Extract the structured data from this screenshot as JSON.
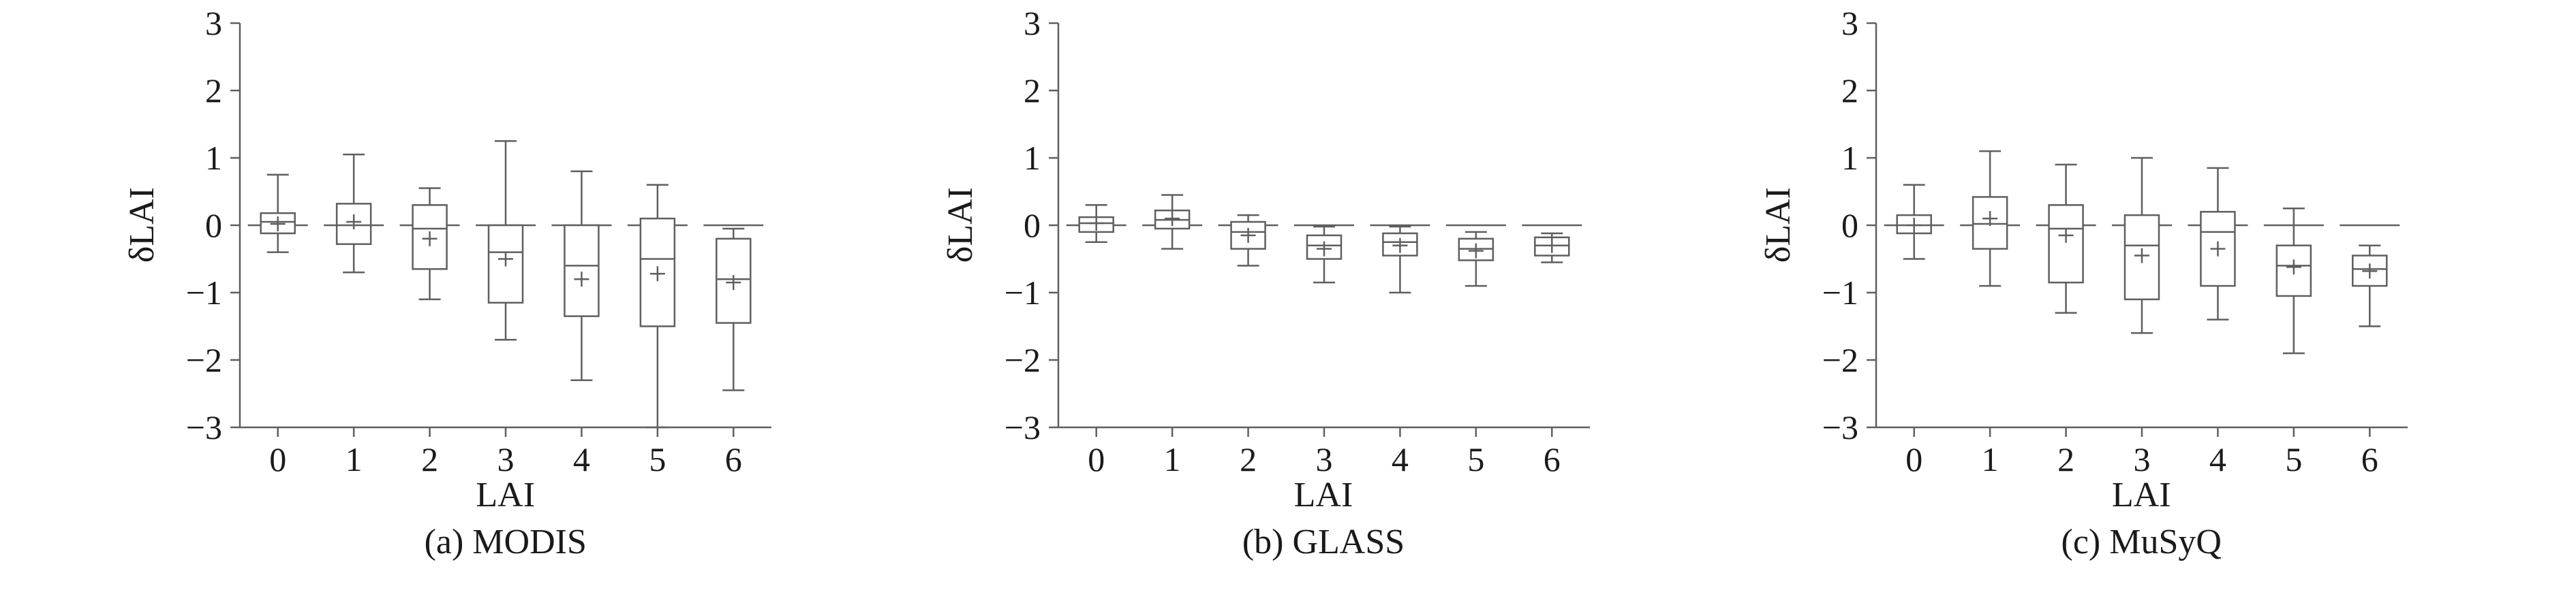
{
  "figure": {
    "description": "Three box-and-whisker subplots of LAI bias (δLAI) versus LAI class for three products",
    "line_color": "#5f5f5f",
    "text_color": "#1a1a1a",
    "background": "#ffffff"
  },
  "chart_data": [
    {
      "type": "box",
      "title": "(a) MODIS",
      "xlabel": "LAI",
      "ylabel": "δLAI",
      "categories": [
        "0",
        "1",
        "2",
        "3",
        "4",
        "5",
        "6"
      ],
      "ylim": [
        -3,
        3
      ],
      "yticks": [
        -3,
        -2,
        -1,
        0,
        1,
        2,
        3
      ],
      "ytick_labels": [
        "−3",
        "−2",
        "−1",
        "0",
        "1",
        "2",
        "3"
      ],
      "zero_line": true,
      "legend": "none",
      "grid": false,
      "line_color": "#5f5f5f",
      "text_color": "#1a1a1a",
      "boxes": [
        {
          "low": -0.4,
          "q1": -0.12,
          "median": 0.05,
          "q3": 0.18,
          "high": 0.75,
          "mean": 0.02
        },
        {
          "low": -0.7,
          "q1": -0.28,
          "median": 0.0,
          "q3": 0.32,
          "high": 1.05,
          "mean": 0.05
        },
        {
          "low": -1.1,
          "q1": -0.65,
          "median": -0.05,
          "q3": 0.3,
          "high": 0.55,
          "mean": -0.2
        },
        {
          "low": -1.7,
          "q1": -1.15,
          "median": -0.4,
          "q3": 0.0,
          "high": 1.25,
          "mean": -0.5
        },
        {
          "low": -2.3,
          "q1": -1.35,
          "median": -0.6,
          "q3": 0.0,
          "high": 0.8,
          "mean": -0.8
        },
        {
          "low": -3.0,
          "q1": -1.5,
          "median": -0.5,
          "q3": 0.1,
          "high": 0.6,
          "mean": -0.72
        },
        {
          "low": -2.45,
          "q1": -1.45,
          "median": -0.8,
          "q3": -0.2,
          "high": -0.05,
          "mean": -0.85
        }
      ]
    },
    {
      "type": "box",
      "title": "(b) GLASS",
      "xlabel": "LAI",
      "ylabel": "δLAI",
      "categories": [
        "0",
        "1",
        "2",
        "3",
        "4",
        "5",
        "6"
      ],
      "ylim": [
        -3,
        3
      ],
      "yticks": [
        -3,
        -2,
        -1,
        0,
        1,
        2,
        3
      ],
      "ytick_labels": [
        "−3",
        "−2",
        "−1",
        "0",
        "1",
        "2",
        "3"
      ],
      "zero_line": true,
      "legend": "none",
      "grid": false,
      "line_color": "#5f5f5f",
      "text_color": "#1a1a1a",
      "boxes": [
        {
          "low": -0.25,
          "q1": -0.1,
          "median": 0.03,
          "q3": 0.12,
          "high": 0.3,
          "mean": 0.03
        },
        {
          "low": -0.35,
          "q1": -0.05,
          "median": 0.08,
          "q3": 0.22,
          "high": 0.45,
          "mean": 0.1
        },
        {
          "low": -0.6,
          "q1": -0.35,
          "median": -0.1,
          "q3": 0.05,
          "high": 0.15,
          "mean": -0.15
        },
        {
          "low": -0.85,
          "q1": -0.5,
          "median": -0.3,
          "q3": -0.15,
          "high": -0.02,
          "mean": -0.35
        },
        {
          "low": -1.0,
          "q1": -0.45,
          "median": -0.25,
          "q3": -0.12,
          "high": -0.02,
          "mean": -0.3
        },
        {
          "low": -0.9,
          "q1": -0.52,
          "median": -0.35,
          "q3": -0.2,
          "high": -0.1,
          "mean": -0.38
        },
        {
          "low": -0.55,
          "q1": -0.45,
          "median": -0.3,
          "q3": -0.18,
          "high": -0.12,
          "mean": -0.3
        }
      ]
    },
    {
      "type": "box",
      "title": "(c) MuSyQ",
      "xlabel": "LAI",
      "ylabel": "δLAI",
      "categories": [
        "0",
        "1",
        "2",
        "3",
        "4",
        "5",
        "6"
      ],
      "ylim": [
        -3,
        3
      ],
      "yticks": [
        -3,
        -2,
        -1,
        0,
        1,
        2,
        3
      ],
      "ytick_labels": [
        "−3",
        "−2",
        "−1",
        "0",
        "1",
        "2",
        "3"
      ],
      "zero_line": true,
      "legend": "none",
      "grid": false,
      "line_color": "#5f5f5f",
      "text_color": "#1a1a1a",
      "boxes": [
        {
          "low": -0.5,
          "q1": -0.12,
          "median": 0.0,
          "q3": 0.15,
          "high": 0.6,
          "mean": 0.0
        },
        {
          "low": -0.9,
          "q1": -0.35,
          "median": 0.02,
          "q3": 0.42,
          "high": 1.1,
          "mean": 0.1
        },
        {
          "low": -1.3,
          "q1": -0.85,
          "median": -0.05,
          "q3": 0.3,
          "high": 0.9,
          "mean": -0.15
        },
        {
          "low": -1.6,
          "q1": -1.1,
          "median": -0.3,
          "q3": 0.15,
          "high": 1.0,
          "mean": -0.45
        },
        {
          "low": -1.4,
          "q1": -0.9,
          "median": -0.1,
          "q3": 0.2,
          "high": 0.85,
          "mean": -0.35
        },
        {
          "low": -1.9,
          "q1": -1.05,
          "median": -0.6,
          "q3": -0.3,
          "high": 0.25,
          "mean": -0.62
        },
        {
          "low": -1.5,
          "q1": -0.9,
          "median": -0.65,
          "q3": -0.45,
          "high": -0.3,
          "mean": -0.68
        }
      ]
    }
  ]
}
